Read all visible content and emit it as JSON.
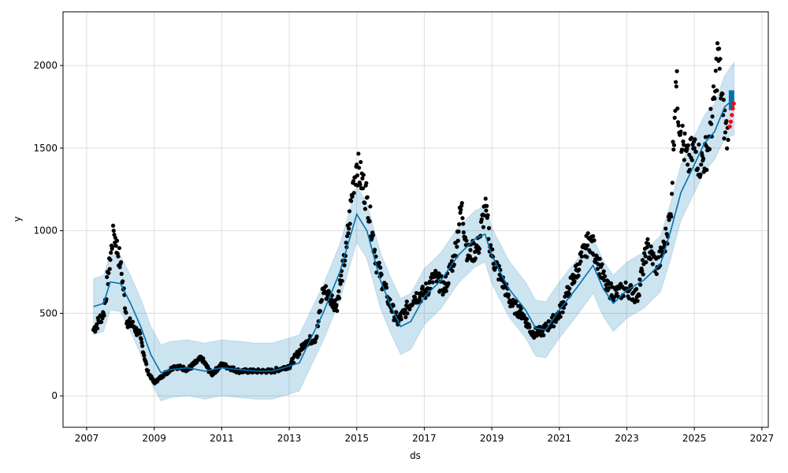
{
  "chart_data": {
    "type": "line",
    "title": "",
    "xlabel": "ds",
    "ylabel": "y",
    "xlim": [
      2006.3,
      2027.19
    ],
    "ylim": [
      -190,
      2325
    ],
    "xticks": [
      2007,
      2009,
      2011,
      2013,
      2015,
      2017,
      2019,
      2021,
      2023,
      2025,
      2027
    ],
    "xtick_labels": [
      "2007",
      "2009",
      "2011",
      "2013",
      "2015",
      "2017",
      "2019",
      "2021",
      "2023",
      "2025",
      "2027"
    ],
    "yticks": [
      0,
      500,
      1000,
      1500,
      2000
    ],
    "ytick_labels": [
      "0",
      "500",
      "1000",
      "1500",
      "2000"
    ],
    "grid": true,
    "colors": {
      "actual": "#000000",
      "forecast": "#0072B2",
      "band": "#0072B2",
      "test": "#ff0000"
    },
    "series": [
      {
        "name": "yhat",
        "x": [
          2007.2,
          2007.5,
          2007.7,
          2008.0,
          2008.3,
          2008.6,
          2008.9,
          2009.2,
          2009.5,
          2010.0,
          2010.5,
          2011.0,
          2011.5,
          2012.0,
          2012.5,
          2013.0,
          2013.3,
          2013.6,
          2014.0,
          2014.5,
          2015.0,
          2015.3,
          2015.7,
          2016.0,
          2016.3,
          2016.6,
          2017.0,
          2017.5,
          2018.0,
          2018.5,
          2018.8,
          2019.0,
          2019.5,
          2020.0,
          2020.3,
          2020.6,
          2021.0,
          2021.5,
          2022.0,
          2022.3,
          2022.6,
          2023.0,
          2023.5,
          2024.0,
          2024.3,
          2024.6,
          2025.0,
          2025.3,
          2025.6,
          2025.9,
          2026.18
        ],
        "y": [
          540,
          560,
          690,
          680,
          560,
          420,
          250,
          140,
          160,
          170,
          150,
          170,
          160,
          150,
          150,
          180,
          200,
          330,
          500,
          750,
          1100,
          1000,
          700,
          550,
          420,
          450,
          600,
          700,
          850,
          950,
          980,
          850,
          650,
          520,
          410,
          400,
          520,
          650,
          790,
          650,
          560,
          640,
          700,
          800,
          1000,
          1230,
          1400,
          1530,
          1600,
          1750,
          1800
        ]
      },
      {
        "name": "actual",
        "x": [
          2007.2,
          2007.5,
          2007.8,
          2008.0,
          2008.2,
          2008.4,
          2008.6,
          2008.8,
          2009.0,
          2009.3,
          2009.6,
          2010.0,
          2010.4,
          2010.7,
          2011.0,
          2011.5,
          2012.0,
          2012.5,
          2013.0,
          2013.5,
          2013.8,
          2014.0,
          2014.4,
          2014.7,
          2014.9,
          2015.0,
          2015.3,
          2015.6,
          2015.9,
          2016.2,
          2016.4,
          2016.7,
          2017.0,
          2017.3,
          2017.6,
          2017.9,
          2018.1,
          2018.3,
          2018.6,
          2018.8,
          2019.0,
          2019.3,
          2019.6,
          2019.9,
          2020.2,
          2020.5,
          2020.8,
          2021.0,
          2021.3,
          2021.6,
          2021.9,
          2022.1,
          2022.4,
          2022.7,
          2023.0,
          2023.3,
          2023.6,
          2023.9,
          2024.1,
          2024.3,
          2024.45,
          2024.6,
          2024.8,
          2025.0,
          2025.2,
          2025.4,
          2025.6,
          2025.7,
          2025.85,
          2026.0
        ],
        "y": [
          400,
          500,
          1000,
          800,
          450,
          420,
          350,
          150,
          80,
          130,
          180,
          160,
          230,
          130,
          190,
          150,
          150,
          150,
          180,
          330,
          350,
          650,
          550,
          900,
          1300,
          1400,
          1200,
          800,
          600,
          450,
          500,
          600,
          620,
          720,
          650,
          850,
          1150,
          850,
          900,
          1150,
          850,
          700,
          550,
          500,
          380,
          390,
          450,
          500,
          650,
          800,
          950,
          850,
          650,
          620,
          650,
          600,
          900,
          780,
          900,
          1100,
          1900,
          1600,
          1400,
          1500,
          1400,
          1500,
          1800,
          2100,
          1700,
          1550
        ]
      },
      {
        "name": "test",
        "x": [
          2026.05,
          2026.08,
          2026.11,
          2026.14,
          2026.17
        ],
        "y": [
          1630,
          1660,
          1700,
          1740,
          1770
        ]
      }
    ],
    "band_halfwidth": [
      170,
      170,
      170,
      170,
      170,
      170,
      170,
      170,
      170,
      170,
      170,
      170,
      170,
      170,
      170,
      170,
      170,
      170,
      170,
      170,
      170,
      170,
      170,
      170,
      170,
      170,
      170,
      170,
      170,
      170,
      170,
      170,
      170,
      170,
      170,
      170,
      170,
      170,
      170,
      170,
      170,
      170,
      170,
      170,
      170,
      170,
      170,
      170,
      170,
      190,
      220
    ]
  }
}
